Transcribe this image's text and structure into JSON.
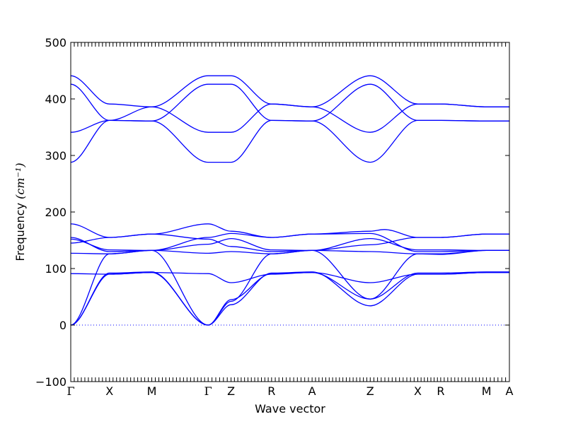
{
  "chart_data": {
    "type": "line",
    "title": "",
    "xlabel": "Wave vector",
    "ylabel": "Frequency",
    "ylabel_unit": "(cm⁻¹)",
    "ylim": [
      -100,
      500
    ],
    "yticks": [
      -100,
      0,
      100,
      200,
      300,
      400,
      500
    ],
    "xlim": [
      0,
      12
    ],
    "high_symmetry_points": [
      {
        "label": "Γ",
        "x": 0
      },
      {
        "label": "X",
        "x": 1.1
      },
      {
        "label": "M",
        "x": 2.3
      },
      {
        "label": "Γ",
        "x": 3.9
      },
      {
        "label": "Z",
        "x": 4.55
      },
      {
        "label": "R",
        "x": 5.7
      },
      {
        "label": "A",
        "x": 6.85
      },
      {
        "label": "Z",
        "x": 8.5
      },
      {
        "label": "X",
        "x": 9.85
      },
      {
        "label": "R",
        "x": 10.5
      },
      {
        "label": "M",
        "x": 11.8
      },
      {
        "label": "A",
        "x": 12.45
      }
    ],
    "zero_line": true,
    "line_color": "#0000ff",
    "series": [
      {
        "points": [
          [
            0,
            441
          ],
          [
            1.1,
            391
          ],
          [
            2.3,
            386
          ],
          [
            3.9,
            441
          ],
          [
            4.55,
            441
          ],
          [
            5.7,
            391
          ],
          [
            6.85,
            386
          ],
          [
            8.5,
            441
          ],
          [
            9.85,
            391
          ],
          [
            10.5,
            391
          ],
          [
            11.8,
            386
          ],
          [
            12.45,
            386
          ]
        ]
      },
      {
        "points": [
          [
            0,
            426
          ],
          [
            1.1,
            362
          ],
          [
            2.3,
            361
          ],
          [
            3.9,
            426
          ],
          [
            4.55,
            426
          ],
          [
            5.7,
            362
          ],
          [
            6.85,
            361
          ],
          [
            8.5,
            426
          ],
          [
            9.85,
            362
          ],
          [
            10.5,
            362
          ],
          [
            11.8,
            361
          ],
          [
            12.45,
            361
          ]
        ]
      },
      {
        "points": [
          [
            0,
            341
          ],
          [
            1.1,
            362
          ],
          [
            2.3,
            386
          ],
          [
            3.9,
            341
          ],
          [
            4.55,
            341
          ],
          [
            5.7,
            391
          ],
          [
            6.85,
            386
          ],
          [
            8.5,
            341
          ],
          [
            9.85,
            391
          ],
          [
            10.5,
            391
          ],
          [
            11.8,
            386
          ],
          [
            12.45,
            386
          ]
        ]
      },
      {
        "points": [
          [
            0,
            288
          ],
          [
            1.1,
            362
          ],
          [
            2.3,
            361
          ],
          [
            3.9,
            288
          ],
          [
            4.55,
            288
          ],
          [
            5.7,
            362
          ],
          [
            6.85,
            361
          ],
          [
            8.5,
            288
          ],
          [
            9.85,
            362
          ],
          [
            10.5,
            362
          ],
          [
            11.8,
            361
          ],
          [
            12.45,
            361
          ]
        ]
      },
      {
        "points": [
          [
            0,
            179
          ],
          [
            1.1,
            155
          ],
          [
            2.3,
            161
          ],
          [
            3.9,
            179
          ],
          [
            4.55,
            166
          ],
          [
            5.7,
            155
          ],
          [
            6.85,
            161
          ],
          [
            8.5,
            166
          ],
          [
            8.9,
            169
          ],
          [
            9.85,
            155
          ],
          [
            10.5,
            155
          ],
          [
            11.8,
            161
          ],
          [
            12.45,
            161
          ]
        ]
      },
      {
        "points": [
          [
            0,
            155
          ],
          [
            1.1,
            130
          ],
          [
            2.3,
            132
          ],
          [
            3.9,
            155
          ],
          [
            4.55,
            162
          ],
          [
            5.7,
            155
          ],
          [
            6.85,
            161
          ],
          [
            8.5,
            162
          ],
          [
            9.85,
            130
          ],
          [
            10.5,
            130
          ],
          [
            11.8,
            132
          ],
          [
            12.45,
            132
          ]
        ]
      },
      {
        "points": [
          [
            0,
            152
          ],
          [
            1.1,
            133
          ],
          [
            2.3,
            132
          ],
          [
            3.9,
            143
          ],
          [
            4.55,
            153
          ],
          [
            5.7,
            133
          ],
          [
            6.85,
            132
          ],
          [
            8.5,
            153
          ],
          [
            9.85,
            133
          ],
          [
            10.5,
            133
          ],
          [
            11.8,
            132
          ],
          [
            12.45,
            132
          ]
        ]
      },
      {
        "points": [
          [
            0,
            145
          ],
          [
            1.1,
            155
          ],
          [
            2.3,
            161
          ],
          [
            3.9,
            152
          ],
          [
            4.55,
            139
          ],
          [
            5.7,
            130
          ],
          [
            6.85,
            132
          ],
          [
            8.5,
            142
          ],
          [
            9.85,
            155
          ],
          [
            10.5,
            155
          ],
          [
            11.8,
            161
          ],
          [
            12.45,
            161
          ]
        ]
      },
      {
        "points": [
          [
            0,
            127
          ],
          [
            1.1,
            126
          ],
          [
            2.3,
            132
          ],
          [
            3.9,
            127
          ],
          [
            4.55,
            130
          ],
          [
            5.7,
            126
          ],
          [
            6.85,
            132
          ],
          [
            8.5,
            130
          ],
          [
            9.85,
            126
          ],
          [
            10.5,
            125
          ],
          [
            11.8,
            132
          ],
          [
            12.45,
            132
          ]
        ]
      },
      {
        "points": [
          [
            0,
            91
          ],
          [
            1.1,
            90
          ],
          [
            2.3,
            93
          ],
          [
            3.9,
            91
          ],
          [
            4.55,
            75
          ],
          [
            5.7,
            90
          ],
          [
            6.85,
            93
          ],
          [
            8.5,
            75
          ],
          [
            9.85,
            90
          ],
          [
            10.5,
            90
          ],
          [
            11.8,
            93
          ],
          [
            12.45,
            93
          ]
        ]
      },
      {
        "points": [
          [
            0,
            0
          ],
          [
            1.1,
            90
          ],
          [
            2.3,
            93
          ],
          [
            3.9,
            0
          ],
          [
            4.55,
            45
          ],
          [
            5.7,
            91
          ],
          [
            6.85,
            93
          ],
          [
            8.5,
            46
          ],
          [
            9.85,
            92
          ],
          [
            10.5,
            92
          ],
          [
            11.8,
            94
          ],
          [
            12.45,
            94
          ]
        ]
      },
      {
        "points": [
          [
            0,
            0
          ],
          [
            1.1,
            92
          ],
          [
            2.3,
            94
          ],
          [
            3.9,
            0
          ],
          [
            4.55,
            36
          ],
          [
            5.7,
            92
          ],
          [
            6.85,
            94
          ],
          [
            8.5,
            34
          ],
          [
            9.85,
            90
          ],
          [
            10.5,
            90
          ],
          [
            11.8,
            93
          ],
          [
            12.45,
            93
          ]
        ]
      },
      {
        "points": [
          [
            0,
            0
          ],
          [
            1.1,
            126
          ],
          [
            2.3,
            132
          ],
          [
            3.9,
            0
          ],
          [
            4.55,
            42
          ],
          [
            5.7,
            126
          ],
          [
            6.85,
            132
          ],
          [
            8.5,
            46
          ],
          [
            9.85,
            126
          ],
          [
            10.5,
            126
          ],
          [
            11.8,
            132
          ],
          [
            12.45,
            132
          ]
        ]
      }
    ]
  }
}
